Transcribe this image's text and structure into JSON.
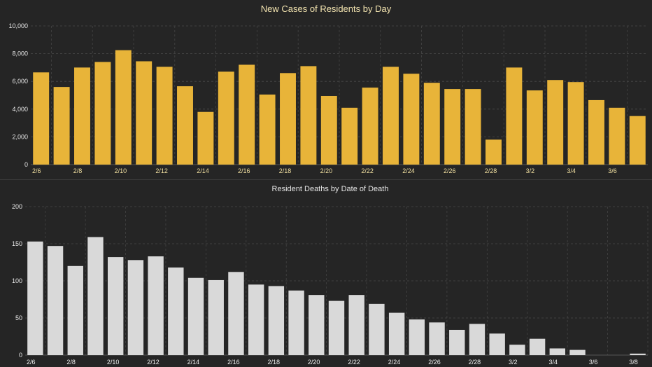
{
  "chart_data": [
    {
      "type": "bar",
      "title": "New Cases of Residents by Day",
      "color": "#E8B439",
      "x": [
        "2/6",
        "2/7",
        "2/8",
        "2/9",
        "2/10",
        "2/11",
        "2/12",
        "2/13",
        "2/14",
        "2/15",
        "2/16",
        "2/17",
        "2/18",
        "2/19",
        "2/20",
        "2/21",
        "2/22",
        "2/23",
        "2/24",
        "2/25",
        "2/26",
        "2/27",
        "2/28",
        "3/1",
        "3/2",
        "3/3",
        "3/4",
        "3/5",
        "3/6",
        "3/7"
      ],
      "values": [
        6650,
        5600,
        7000,
        7400,
        8250,
        7450,
        7050,
        5650,
        3800,
        6700,
        7200,
        5050,
        6600,
        7100,
        4950,
        4100,
        5550,
        7050,
        6550,
        5900,
        5450,
        5450,
        1800,
        7000,
        5350,
        6100,
        5950,
        4650,
        4100,
        3500
      ],
      "x_tick_labels": [
        "2/6",
        "2/8",
        "2/10",
        "2/12",
        "2/14",
        "2/16",
        "2/18",
        "2/20",
        "2/22",
        "2/24",
        "2/26",
        "2/28",
        "3/2",
        "3/4",
        "3/6"
      ],
      "y_tick_labels": [
        "0",
        "2,000",
        "4,000",
        "6,000",
        "8,000",
        "10,000"
      ],
      "ylim": [
        0,
        10000
      ],
      "grid": true
    },
    {
      "type": "bar",
      "title": "Resident Deaths by Date of Death",
      "color": "#D9D9D9",
      "x": [
        "2/6",
        "2/7",
        "2/8",
        "2/9",
        "2/10",
        "2/11",
        "2/12",
        "2/13",
        "2/14",
        "2/15",
        "2/16",
        "2/17",
        "2/18",
        "2/19",
        "2/20",
        "2/21",
        "2/22",
        "2/23",
        "2/24",
        "2/25",
        "2/26",
        "2/27",
        "2/28",
        "3/1",
        "3/2",
        "3/3",
        "3/4",
        "3/5",
        "3/6",
        "3/7",
        "3/8"
      ],
      "values": [
        153,
        147,
        120,
        159,
        132,
        128,
        133,
        118,
        104,
        101,
        112,
        95,
        93,
        87,
        81,
        73,
        81,
        69,
        57,
        48,
        44,
        34,
        42,
        29,
        14,
        22,
        9,
        7,
        0,
        0,
        2
      ],
      "x_tick_labels": [
        "2/6",
        "2/8",
        "2/10",
        "2/12",
        "2/14",
        "2/16",
        "2/18",
        "2/20",
        "2/22",
        "2/24",
        "2/26",
        "2/28",
        "3/2",
        "3/4",
        "3/6",
        "3/8"
      ],
      "y_tick_labels": [
        "0",
        "50",
        "100",
        "150",
        "200"
      ],
      "ylim": [
        0,
        200
      ],
      "grid": true
    }
  ]
}
